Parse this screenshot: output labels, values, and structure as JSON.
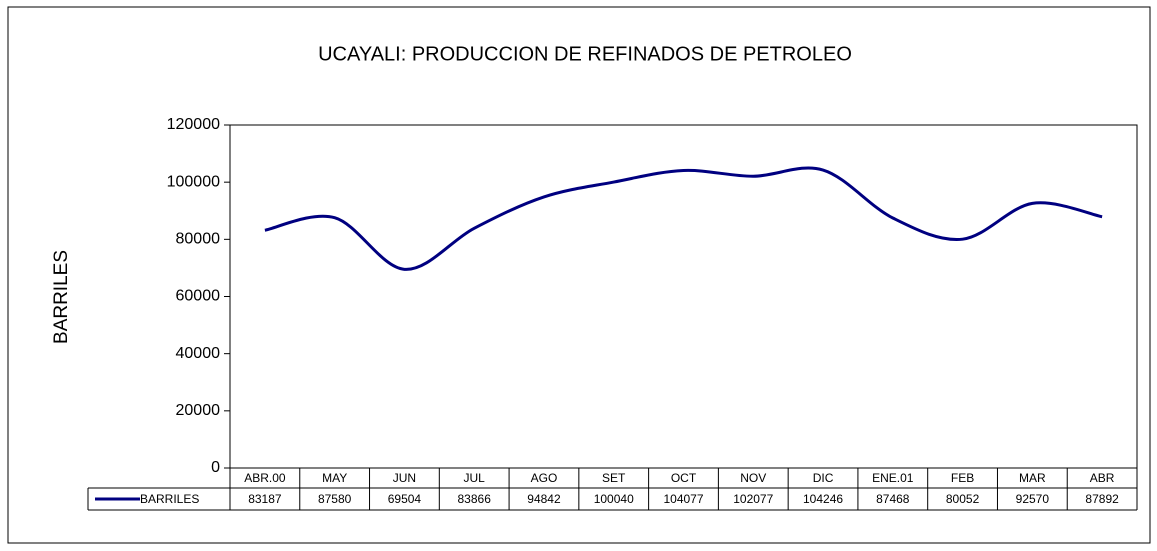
{
  "chart_data": {
    "type": "line",
    "title": "UCAYALI: PRODUCCION DE REFINADOS DE PETROLEO",
    "y_label": "BARRILES",
    "categories": [
      "ABR.00",
      "MAY",
      "JUN",
      "JUL",
      "AGO",
      "SET",
      "OCT",
      "NOV",
      "DIC",
      "ENE.01",
      "FEB",
      "MAR",
      "ABR"
    ],
    "series": [
      {
        "name": "BARRILES",
        "color": "#000080",
        "values": [
          83187,
          87580,
          69504,
          83866,
          94842,
          100040,
          104077,
          102077,
          104246,
          87468,
          80052,
          92570,
          87892
        ]
      }
    ],
    "ylim": [
      0,
      120000
    ],
    "yticks": [
      0,
      20000,
      40000,
      60000,
      80000,
      100000,
      120000
    ],
    "smooth": true,
    "data_table": true
  }
}
